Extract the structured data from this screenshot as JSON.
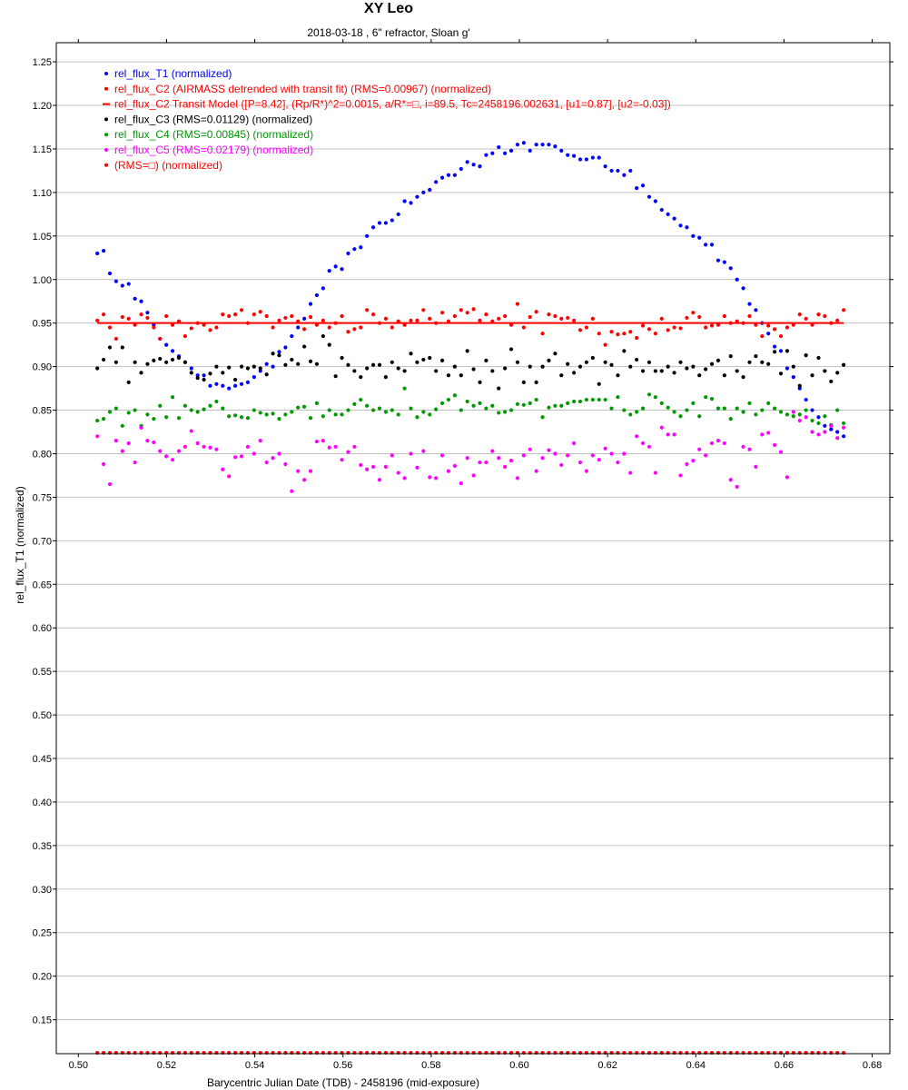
{
  "chart_data": {
    "type": "scatter",
    "title": "XY Leo",
    "subtitle": "2018-03-18 , 6\" refractor, Sloan g'",
    "xlabel": "Barycentric Julian Date (TDB) - 2458196 (mid-exposure)",
    "ylabel": "rel_flux_T1 (normalized)",
    "xlim": [
      0.495,
      0.684
    ],
    "ylim": [
      0.111,
      1.272
    ],
    "xticks": [
      "0.50",
      "0.52",
      "0.54",
      "0.56",
      "0.58",
      "0.60",
      "0.62",
      "0.64",
      "0.66",
      "0.68"
    ],
    "yticks": [
      "0.15",
      "0.20",
      "0.25",
      "0.30",
      "0.35",
      "0.40",
      "0.45",
      "0.50",
      "0.55",
      "0.60",
      "0.65",
      "0.70",
      "0.75",
      "0.80",
      "0.85",
      "0.90",
      "0.95",
      "1.00",
      "1.05",
      "1.10",
      "1.15",
      "1.20",
      "1.25"
    ],
    "grid": "horizontal",
    "legend_position": "top-left",
    "x_start": 0.5043,
    "x_step": 0.001422,
    "n_points": 120,
    "series": [
      {
        "name": "rel_flux_T1 (normalized)",
        "color": "#0000ff",
        "kind": "points",
        "values": [
          1.03,
          1.033,
          1.007,
          0.998,
          0.993,
          0.995,
          0.978,
          0.975,
          0.962,
          0.948,
          0.932,
          0.925,
          0.918,
          0.912,
          0.905,
          0.898,
          0.89,
          0.89,
          0.878,
          0.88,
          0.878,
          0.875,
          0.878,
          0.88,
          0.882,
          0.888,
          0.895,
          0.903,
          0.9,
          0.917,
          0.922,
          0.935,
          0.945,
          0.955,
          0.972,
          0.982,
          0.99,
          1.01,
          1.015,
          1.012,
          1.03,
          1.035,
          1.037,
          1.05,
          1.06,
          1.065,
          1.065,
          1.068,
          1.075,
          1.09,
          1.088,
          1.095,
          1.1,
          1.103,
          1.112,
          1.117,
          1.12,
          1.12,
          1.127,
          1.135,
          1.132,
          1.13,
          1.143,
          1.145,
          1.152,
          1.145,
          1.148,
          1.155,
          1.157,
          1.148,
          1.155,
          1.155,
          1.155,
          1.153,
          1.148,
          1.143,
          1.142,
          1.138,
          1.138,
          1.14,
          1.14,
          1.13,
          1.125,
          1.125,
          1.12,
          1.125,
          1.105,
          1.108,
          1.095,
          1.09,
          1.08,
          1.075,
          1.07,
          1.062,
          1.06,
          1.05,
          1.048,
          1.04,
          1.04,
          1.022,
          1.02,
          1.013,
          1.0,
          0.99,
          0.972,
          0.965,
          0.95,
          0.938,
          0.923,
          0.918,
          0.898,
          0.888,
          0.875,
          0.862,
          0.85,
          0.842,
          0.832,
          0.828,
          0.825,
          0.82
        ]
      },
      {
        "name": "rel_flux_C2 (AIRMASS detrended with transit fit) (RMS=0.00967) (normalized)",
        "color": "#ff0000",
        "kind": "points",
        "values": [
          0.953,
          0.96,
          0.945,
          0.932,
          0.957,
          0.955,
          0.948,
          0.96,
          0.956,
          0.945,
          0.932,
          0.958,
          0.948,
          0.952,
          0.935,
          0.944,
          0.95,
          0.948,
          0.942,
          0.945,
          0.96,
          0.958,
          0.96,
          0.965,
          0.95,
          0.96,
          0.963,
          0.958,
          0.945,
          0.953,
          0.956,
          0.958,
          0.952,
          0.943,
          0.957,
          0.948,
          0.953,
          0.945,
          0.95,
          0.958,
          0.94,
          0.943,
          0.945,
          0.965,
          0.96,
          0.95,
          0.955,
          0.945,
          0.952,
          0.948,
          0.953,
          0.953,
          0.965,
          0.955,
          0.95,
          0.962,
          0.952,
          0.958,
          0.965,
          0.962,
          0.966,
          0.953,
          0.96,
          0.952,
          0.955,
          0.958,
          0.948,
          0.972,
          0.945,
          0.957,
          0.963,
          0.938,
          0.96,
          0.958,
          0.955,
          0.956,
          0.953,
          0.942,
          0.945,
          0.955,
          0.938,
          0.925,
          0.94,
          0.937,
          0.938,
          0.94,
          0.933,
          0.947,
          0.943,
          0.938,
          0.955,
          0.942,
          0.945,
          0.944,
          0.956,
          0.962,
          0.957,
          0.945,
          0.947,
          0.948,
          0.958,
          0.95,
          0.952,
          0.95,
          0.958,
          0.948,
          0.935,
          0.947,
          0.943,
          0.935,
          0.945,
          0.948,
          0.96,
          0.955,
          0.948,
          0.96,
          0.958,
          0.95,
          0.953,
          0.965
        ]
      },
      {
        "name": "rel_flux_C2 Transit Model ([P=8.42], (Rp/R*)^2=0.0015, a/R*=□, i=89.5, Tc=2458196.002631, [u1=0.87], [u2=-0.03])",
        "color": "#ff0000",
        "kind": "line",
        "constant_value": 0.95
      },
      {
        "name": "rel_flux_C3 (RMS=0.01129) (normalized)",
        "color": "#000000",
        "kind": "points",
        "values": [
          0.898,
          0.908,
          0.922,
          0.905,
          0.922,
          0.882,
          0.905,
          0.893,
          0.903,
          0.907,
          0.909,
          0.905,
          0.908,
          0.91,
          0.905,
          0.893,
          0.887,
          0.885,
          0.892,
          0.9,
          0.893,
          0.899,
          0.885,
          0.9,
          0.898,
          0.9,
          0.898,
          0.891,
          0.915,
          0.913,
          0.902,
          0.908,
          0.903,
          0.923,
          0.906,
          0.903,
          0.935,
          0.925,
          0.889,
          0.91,
          0.902,
          0.895,
          0.888,
          0.898,
          0.902,
          0.902,
          0.888,
          0.905,
          0.898,
          0.895,
          0.915,
          0.905,
          0.908,
          0.91,
          0.895,
          0.907,
          0.89,
          0.9,
          0.89,
          0.918,
          0.897,
          0.882,
          0.907,
          0.895,
          0.875,
          0.898,
          0.92,
          0.905,
          0.882,
          0.9,
          0.882,
          0.9,
          0.907,
          0.915,
          0.89,
          0.903,
          0.893,
          0.9,
          0.905,
          0.91,
          0.88,
          0.905,
          0.902,
          0.89,
          0.918,
          0.9,
          0.908,
          0.895,
          0.905,
          0.895,
          0.895,
          0.9,
          0.893,
          0.905,
          0.898,
          0.9,
          0.89,
          0.897,
          0.903,
          0.907,
          0.89,
          0.912,
          0.895,
          0.888,
          0.905,
          0.912,
          0.905,
          0.903,
          0.917,
          0.892,
          0.918,
          0.9,
          0.878,
          0.913,
          0.89,
          0.91,
          0.895,
          0.883,
          0.893,
          0.902
        ]
      },
      {
        "name": "rel_flux_C4 (RMS=0.00845) (normalized)",
        "color": "#009900",
        "kind": "points",
        "values": [
          0.838,
          0.84,
          0.848,
          0.852,
          0.832,
          0.847,
          0.85,
          0.832,
          0.845,
          0.84,
          0.855,
          0.842,
          0.865,
          0.841,
          0.855,
          0.85,
          0.848,
          0.851,
          0.855,
          0.86,
          0.852,
          0.843,
          0.844,
          0.842,
          0.841,
          0.85,
          0.847,
          0.845,
          0.846,
          0.84,
          0.845,
          0.848,
          0.853,
          0.854,
          0.841,
          0.858,
          0.843,
          0.85,
          0.845,
          0.845,
          0.85,
          0.857,
          0.862,
          0.855,
          0.85,
          0.852,
          0.848,
          0.85,
          0.845,
          0.875,
          0.852,
          0.842,
          0.848,
          0.845,
          0.851,
          0.858,
          0.862,
          0.867,
          0.85,
          0.86,
          0.855,
          0.858,
          0.852,
          0.855,
          0.847,
          0.848,
          0.85,
          0.857,
          0.856,
          0.858,
          0.862,
          0.842,
          0.853,
          0.855,
          0.855,
          0.858,
          0.86,
          0.86,
          0.862,
          0.862,
          0.862,
          0.862,
          0.852,
          0.865,
          0.85,
          0.845,
          0.848,
          0.852,
          0.868,
          0.865,
          0.858,
          0.853,
          0.848,
          0.843,
          0.85,
          0.858,
          0.843,
          0.865,
          0.863,
          0.852,
          0.852,
          0.84,
          0.852,
          0.848,
          0.858,
          0.845,
          0.85,
          0.858,
          0.852,
          0.848,
          0.845,
          0.843,
          0.845,
          0.85,
          0.838,
          0.835,
          0.843,
          0.833,
          0.85,
          0.835
        ]
      },
      {
        "name": "rel_flux_C5 (RMS=0.02179) (normalized)",
        "color": "#ff00ff",
        "kind": "points",
        "values": [
          0.82,
          0.788,
          0.765,
          0.815,
          0.803,
          0.812,
          0.79,
          0.83,
          0.815,
          0.813,
          0.803,
          0.797,
          0.793,
          0.803,
          0.808,
          0.826,
          0.812,
          0.808,
          0.807,
          0.805,
          0.782,
          0.774,
          0.796,
          0.797,
          0.808,
          0.8,
          0.815,
          0.79,
          0.795,
          0.8,
          0.788,
          0.757,
          0.78,
          0.77,
          0.78,
          0.814,
          0.815,
          0.807,
          0.808,
          0.793,
          0.802,
          0.808,
          0.787,
          0.782,
          0.785,
          0.77,
          0.785,
          0.798,
          0.778,
          0.772,
          0.8,
          0.784,
          0.803,
          0.773,
          0.772,
          0.798,
          0.78,
          0.786,
          0.766,
          0.795,
          0.775,
          0.79,
          0.79,
          0.803,
          0.795,
          0.785,
          0.792,
          0.772,
          0.798,
          0.805,
          0.78,
          0.795,
          0.804,
          0.8,
          0.787,
          0.798,
          0.812,
          0.79,
          0.78,
          0.798,
          0.793,
          0.806,
          0.8,
          0.79,
          0.8,
          0.778,
          0.82,
          0.812,
          0.808,
          0.778,
          0.83,
          0.822,
          0.822,
          0.775,
          0.788,
          0.792,
          0.805,
          0.798,
          0.812,
          0.815,
          0.812,
          0.77,
          0.762,
          0.808,
          0.805,
          0.785,
          0.822,
          0.824,
          0.81,
          0.802,
          0.773,
          0.848,
          0.838,
          0.842,
          0.825,
          0.822,
          0.825,
          0.832,
          0.818,
          0.83
        ]
      },
      {
        "name": " (RMS=□) (normalized)",
        "color": "#ff0000",
        "kind": "points",
        "constant_value": 0.112
      }
    ]
  }
}
